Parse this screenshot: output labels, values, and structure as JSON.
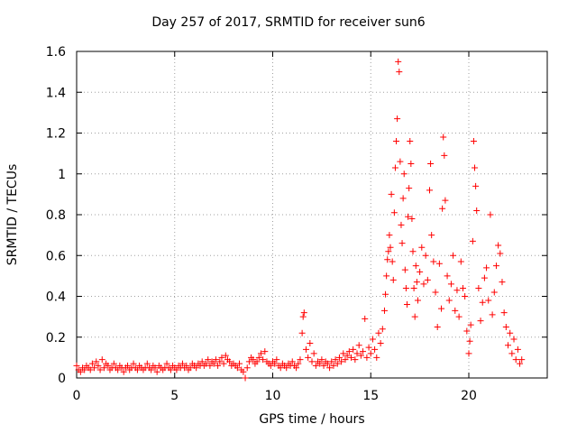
{
  "chart_data": {
    "type": "scatter",
    "title": "Day 257 of 2017, SRMTID for receiver sun6",
    "xlabel": "GPS time / hours",
    "ylabel": "SRMTID / TECUs",
    "xlim": [
      0,
      24
    ],
    "ylim": [
      0,
      1.6
    ],
    "xticks": [
      "0",
      "5",
      "10",
      "15",
      "20"
    ],
    "xtick_values": [
      0,
      5,
      10,
      15,
      20
    ],
    "yticks": [
      "0",
      "0.2",
      "0.4",
      "0.6",
      "0.8",
      "1",
      "1.2",
      "1.4",
      "1.6"
    ],
    "ytick_values": [
      0,
      0.2,
      0.4,
      0.6,
      0.8,
      1.0,
      1.2,
      1.4,
      1.6
    ],
    "grid": true,
    "marker": "+",
    "color": "#ff0000",
    "series": [
      {
        "name": "SRMTID",
        "points": [
          [
            0.0,
            0.06
          ],
          [
            0.1,
            0.04
          ],
          [
            0.2,
            0.03
          ],
          [
            0.3,
            0.05
          ],
          [
            0.4,
            0.04
          ],
          [
            0.5,
            0.06
          ],
          [
            0.6,
            0.05
          ],
          [
            0.7,
            0.04
          ],
          [
            0.8,
            0.07
          ],
          [
            0.9,
            0.05
          ],
          [
            1.0,
            0.08
          ],
          [
            1.1,
            0.06
          ],
          [
            1.2,
            0.04
          ],
          [
            1.3,
            0.09
          ],
          [
            1.4,
            0.05
          ],
          [
            1.5,
            0.07
          ],
          [
            1.6,
            0.06
          ],
          [
            1.7,
            0.04
          ],
          [
            1.8,
            0.05
          ],
          [
            1.9,
            0.07
          ],
          [
            2.0,
            0.05
          ],
          [
            2.1,
            0.04
          ],
          [
            2.2,
            0.06
          ],
          [
            2.3,
            0.05
          ],
          [
            2.4,
            0.03
          ],
          [
            2.5,
            0.05
          ],
          [
            2.6,
            0.06
          ],
          [
            2.7,
            0.04
          ],
          [
            2.8,
            0.05
          ],
          [
            2.9,
            0.07
          ],
          [
            3.0,
            0.05
          ],
          [
            3.1,
            0.04
          ],
          [
            3.2,
            0.06
          ],
          [
            3.3,
            0.05
          ],
          [
            3.4,
            0.04
          ],
          [
            3.5,
            0.05
          ],
          [
            3.6,
            0.07
          ],
          [
            3.7,
            0.05
          ],
          [
            3.8,
            0.04
          ],
          [
            3.9,
            0.06
          ],
          [
            4.0,
            0.05
          ],
          [
            4.1,
            0.03
          ],
          [
            4.2,
            0.06
          ],
          [
            4.3,
            0.05
          ],
          [
            4.4,
            0.04
          ],
          [
            4.5,
            0.05
          ],
          [
            4.6,
            0.07
          ],
          [
            4.7,
            0.05
          ],
          [
            4.8,
            0.04
          ],
          [
            4.9,
            0.06
          ],
          [
            5.0,
            0.05
          ],
          [
            5.1,
            0.04
          ],
          [
            5.2,
            0.06
          ],
          [
            5.3,
            0.05
          ],
          [
            5.4,
            0.07
          ],
          [
            5.5,
            0.05
          ],
          [
            5.6,
            0.06
          ],
          [
            5.7,
            0.04
          ],
          [
            5.8,
            0.05
          ],
          [
            5.9,
            0.07
          ],
          [
            6.0,
            0.06
          ],
          [
            6.1,
            0.05
          ],
          [
            6.2,
            0.07
          ],
          [
            6.3,
            0.06
          ],
          [
            6.4,
            0.08
          ],
          [
            6.5,
            0.06
          ],
          [
            6.6,
            0.07
          ],
          [
            6.7,
            0.09
          ],
          [
            6.8,
            0.06
          ],
          [
            6.9,
            0.08
          ],
          [
            7.0,
            0.07
          ],
          [
            7.1,
            0.09
          ],
          [
            7.2,
            0.06
          ],
          [
            7.3,
            0.08
          ],
          [
            7.4,
            0.1
          ],
          [
            7.5,
            0.07
          ],
          [
            7.6,
            0.11
          ],
          [
            7.7,
            0.09
          ],
          [
            7.8,
            0.08
          ],
          [
            7.9,
            0.06
          ],
          [
            8.0,
            0.07
          ],
          [
            8.1,
            0.06
          ],
          [
            8.2,
            0.05
          ],
          [
            8.3,
            0.07
          ],
          [
            8.4,
            0.04
          ],
          [
            8.5,
            0.03
          ],
          [
            8.6,
            0.0
          ],
          [
            8.7,
            0.05
          ],
          [
            8.8,
            0.08
          ],
          [
            8.9,
            0.1
          ],
          [
            9.0,
            0.09
          ],
          [
            9.1,
            0.07
          ],
          [
            9.2,
            0.08
          ],
          [
            9.3,
            0.1
          ],
          [
            9.4,
            0.12
          ],
          [
            9.5,
            0.09
          ],
          [
            9.6,
            0.13
          ],
          [
            9.7,
            0.08
          ],
          [
            9.8,
            0.07
          ],
          [
            9.9,
            0.06
          ],
          [
            10.0,
            0.08
          ],
          [
            10.1,
            0.07
          ],
          [
            10.2,
            0.09
          ],
          [
            10.3,
            0.06
          ],
          [
            10.4,
            0.05
          ],
          [
            10.5,
            0.07
          ],
          [
            10.6,
            0.06
          ],
          [
            10.7,
            0.05
          ],
          [
            10.8,
            0.07
          ],
          [
            10.9,
            0.06
          ],
          [
            11.0,
            0.08
          ],
          [
            11.1,
            0.06
          ],
          [
            11.2,
            0.05
          ],
          [
            11.3,
            0.07
          ],
          [
            11.4,
            0.09
          ],
          [
            11.5,
            0.22
          ],
          [
            11.55,
            0.3
          ],
          [
            11.6,
            0.32
          ],
          [
            11.7,
            0.14
          ],
          [
            11.8,
            0.1
          ],
          [
            11.9,
            0.17
          ],
          [
            12.0,
            0.08
          ],
          [
            12.1,
            0.12
          ],
          [
            12.2,
            0.06
          ],
          [
            12.3,
            0.08
          ],
          [
            12.4,
            0.07
          ],
          [
            12.5,
            0.09
          ],
          [
            12.6,
            0.06
          ],
          [
            12.7,
            0.08
          ],
          [
            12.8,
            0.07
          ],
          [
            12.9,
            0.05
          ],
          [
            13.0,
            0.08
          ],
          [
            13.1,
            0.06
          ],
          [
            13.2,
            0.09
          ],
          [
            13.3,
            0.07
          ],
          [
            13.4,
            0.1
          ],
          [
            13.5,
            0.08
          ],
          [
            13.6,
            0.12
          ],
          [
            13.7,
            0.09
          ],
          [
            13.8,
            0.11
          ],
          [
            13.9,
            0.13
          ],
          [
            14.0,
            0.1
          ],
          [
            14.1,
            0.14
          ],
          [
            14.2,
            0.09
          ],
          [
            14.3,
            0.12
          ],
          [
            14.4,
            0.16
          ],
          [
            14.5,
            0.11
          ],
          [
            14.6,
            0.13
          ],
          [
            14.7,
            0.29
          ],
          [
            14.8,
            0.1
          ],
          [
            14.9,
            0.15
          ],
          [
            15.0,
            0.12
          ],
          [
            15.1,
            0.19
          ],
          [
            15.2,
            0.14
          ],
          [
            15.3,
            0.1
          ],
          [
            15.4,
            0.22
          ],
          [
            15.5,
            0.17
          ],
          [
            15.6,
            0.24
          ],
          [
            15.7,
            0.33
          ],
          [
            15.75,
            0.41
          ],
          [
            15.8,
            0.5
          ],
          [
            15.85,
            0.58
          ],
          [
            15.9,
            0.62
          ],
          [
            15.95,
            0.7
          ],
          [
            16.0,
            0.64
          ],
          [
            16.05,
            0.9
          ],
          [
            16.1,
            0.57
          ],
          [
            16.15,
            0.48
          ],
          [
            16.2,
            0.81
          ],
          [
            16.25,
            1.03
          ],
          [
            16.3,
            1.16
          ],
          [
            16.35,
            1.27
          ],
          [
            16.4,
            1.55
          ],
          [
            16.45,
            1.5
          ],
          [
            16.5,
            1.06
          ],
          [
            16.55,
            0.75
          ],
          [
            16.6,
            0.66
          ],
          [
            16.65,
            0.88
          ],
          [
            16.7,
            1.0
          ],
          [
            16.75,
            0.53
          ],
          [
            16.8,
            0.44
          ],
          [
            16.85,
            0.36
          ],
          [
            16.9,
            0.79
          ],
          [
            16.95,
            0.93
          ],
          [
            17.0,
            1.16
          ],
          [
            17.05,
            1.05
          ],
          [
            17.1,
            0.78
          ],
          [
            17.15,
            0.62
          ],
          [
            17.2,
            0.44
          ],
          [
            17.25,
            0.3
          ],
          [
            17.3,
            0.55
          ],
          [
            17.35,
            0.47
          ],
          [
            17.4,
            0.38
          ],
          [
            17.5,
            0.52
          ],
          [
            17.6,
            0.64
          ],
          [
            17.7,
            0.46
          ],
          [
            17.8,
            0.6
          ],
          [
            17.9,
            0.48
          ],
          [
            18.0,
            0.92
          ],
          [
            18.05,
            1.05
          ],
          [
            18.1,
            0.7
          ],
          [
            18.2,
            0.57
          ],
          [
            18.3,
            0.42
          ],
          [
            18.4,
            0.25
          ],
          [
            18.5,
            0.56
          ],
          [
            18.6,
            0.34
          ],
          [
            18.65,
            0.83
          ],
          [
            18.7,
            1.18
          ],
          [
            18.75,
            1.09
          ],
          [
            18.8,
            0.87
          ],
          [
            18.9,
            0.5
          ],
          [
            19.0,
            0.38
          ],
          [
            19.1,
            0.46
          ],
          [
            19.2,
            0.6
          ],
          [
            19.3,
            0.33
          ],
          [
            19.4,
            0.43
          ],
          [
            19.5,
            0.3
          ],
          [
            19.6,
            0.57
          ],
          [
            19.7,
            0.44
          ],
          [
            19.8,
            0.4
          ],
          [
            19.9,
            0.23
          ],
          [
            20.0,
            0.12
          ],
          [
            20.05,
            0.18
          ],
          [
            20.1,
            0.26
          ],
          [
            20.2,
            0.67
          ],
          [
            20.25,
            1.16
          ],
          [
            20.3,
            1.03
          ],
          [
            20.35,
            0.94
          ],
          [
            20.4,
            0.82
          ],
          [
            20.5,
            0.44
          ],
          [
            20.6,
            0.28
          ],
          [
            20.7,
            0.37
          ],
          [
            20.8,
            0.49
          ],
          [
            20.9,
            0.54
          ],
          [
            21.0,
            0.38
          ],
          [
            21.1,
            0.8
          ],
          [
            21.2,
            0.31
          ],
          [
            21.3,
            0.42
          ],
          [
            21.4,
            0.55
          ],
          [
            21.5,
            0.65
          ],
          [
            21.6,
            0.61
          ],
          [
            21.7,
            0.47
          ],
          [
            21.8,
            0.32
          ],
          [
            21.9,
            0.25
          ],
          [
            22.0,
            0.16
          ],
          [
            22.1,
            0.22
          ],
          [
            22.2,
            0.12
          ],
          [
            22.3,
            0.19
          ],
          [
            22.4,
            0.09
          ],
          [
            22.5,
            0.14
          ],
          [
            22.6,
            0.07
          ],
          [
            22.7,
            0.09
          ]
        ]
      }
    ]
  }
}
